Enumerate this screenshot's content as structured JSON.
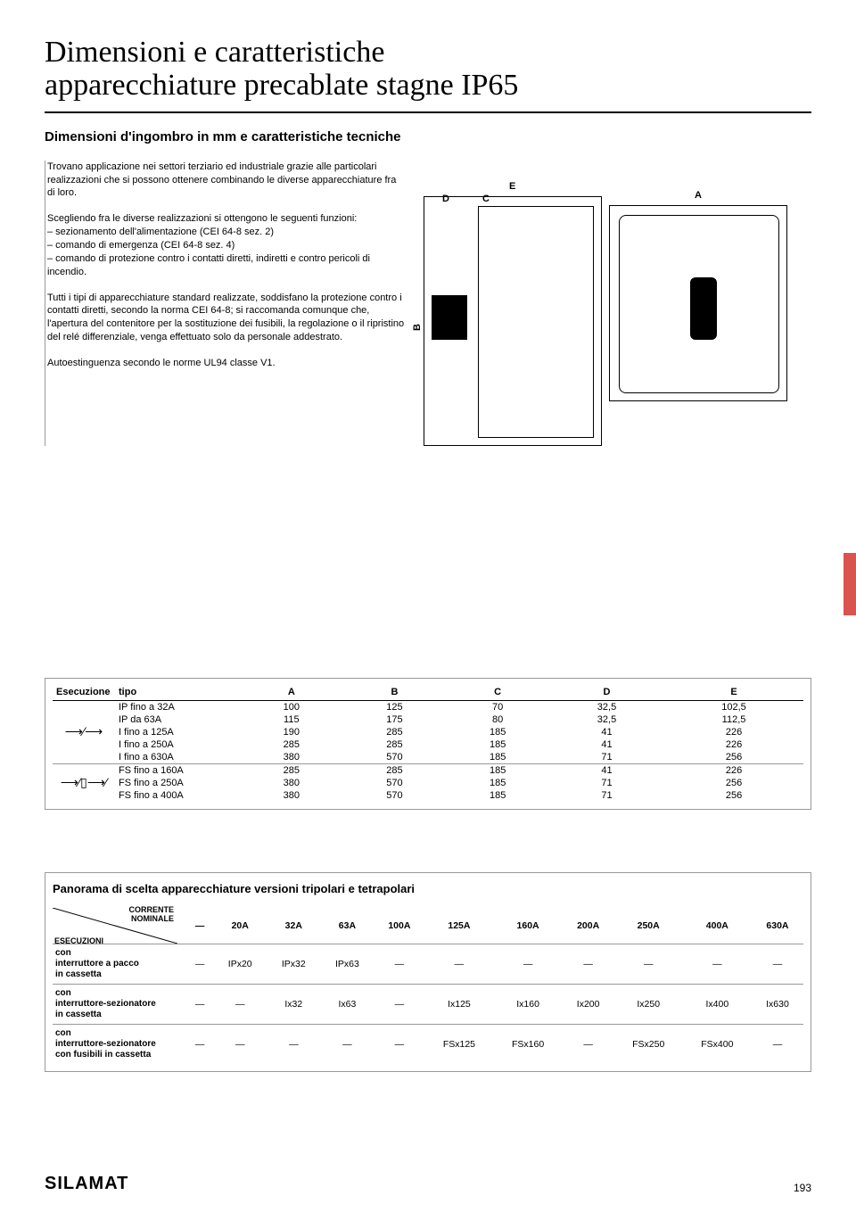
{
  "title_line1": "Dimensioni e caratteristiche",
  "title_line2": "apparecchiature precablate stagne IP65",
  "subtitle": "Dimensioni d'ingombro in mm e caratteristiche tecniche",
  "paragraphs": {
    "p1": "Trovano applicazione nei settori terziario ed industriale grazie alle particolari realizzazioni che si possono ottenere combinando le diverse apparecchiature fra di loro.",
    "p2": "Scegliendo fra le diverse realizzazioni si ottengono le seguenti funzioni:\n– sezionamento dell'alimentazione (CEI 64-8 sez. 2)\n– comando di emergenza (CEI 64-8 sez. 4)\n– comando di protezione contro i contatti diretti, indiretti e contro pericoli di incendio.",
    "p3": "Tutti i tipi di apparecchiature standard realizzate, soddisfano la protezione contro i contatti diretti, secondo la norma CEI 64-8; si raccomanda comunque che, l'apertura del contenitore per la sostituzione dei fusibili, la regolazione o il ripristino del relé differenziale, venga effettuato solo da personale addestrato.",
    "p4": "Autoestinguenza secondo le norme UL94 classe V1."
  },
  "diagram_labels": {
    "E": "E",
    "D": "D",
    "C": "C",
    "A": "A",
    "B": "B"
  },
  "table1": {
    "header": [
      "Esecuzione",
      "tipo",
      "A",
      "B",
      "C",
      "D",
      "E"
    ],
    "group1": [
      [
        "IP fino a 32A",
        "100",
        "125",
        "70",
        "32,5",
        "102,5"
      ],
      [
        "IP da 63A",
        "115",
        "175",
        "80",
        "32,5",
        "112,5"
      ],
      [
        "I fino a 125A",
        "190",
        "285",
        "185",
        "41",
        "226"
      ],
      [
        "I fino a 250A",
        "285",
        "285",
        "185",
        "41",
        "226"
      ],
      [
        "I fino a 630A",
        "380",
        "570",
        "185",
        "71",
        "256"
      ]
    ],
    "group2": [
      [
        "FS fino a 160A",
        "285",
        "285",
        "185",
        "41",
        "226"
      ],
      [
        "FS fino a 250A",
        "380",
        "570",
        "185",
        "71",
        "256"
      ],
      [
        "FS fino a 400A",
        "380",
        "570",
        "185",
        "71",
        "256"
      ]
    ]
  },
  "panorama": {
    "title": "Panorama di scelta apparecchiature versioni tripolari e tetrapolari",
    "diag_top": "CORRENTE\nNOMINALE",
    "diag_bot": "ESECUZIONI",
    "cols": [
      "—",
      "20A",
      "32A",
      "63A",
      "100A",
      "125A",
      "160A",
      "200A",
      "250A",
      "400A",
      "630A"
    ],
    "rows": [
      {
        "label": "con\ninterruttore a pacco\nin cassetta",
        "cells": [
          "—",
          "IPx20",
          "IPx32",
          "IPx63",
          "—",
          "—",
          "—",
          "—",
          "—",
          "—",
          "—"
        ]
      },
      {
        "label": "con\ninterruttore-sezionatore\nin cassetta",
        "cells": [
          "—",
          "—",
          "Ix32",
          "Ix63",
          "—",
          "Ix125",
          "Ix160",
          "Ix200",
          "Ix250",
          "Ix400",
          "Ix630"
        ]
      },
      {
        "label": "con\ninterruttore-sezionatore\ncon fusibili in cassetta",
        "cells": [
          "—",
          "—",
          "—",
          "—",
          "—",
          "FSx125",
          "FSx160",
          "—",
          "FSx250",
          "FSx400",
          "—"
        ]
      }
    ]
  },
  "brand": "SILAMAT",
  "page": "193",
  "colors": {
    "text": "#000000",
    "border": "#999999",
    "tab": "#d9534f",
    "bg": "#ffffff"
  }
}
